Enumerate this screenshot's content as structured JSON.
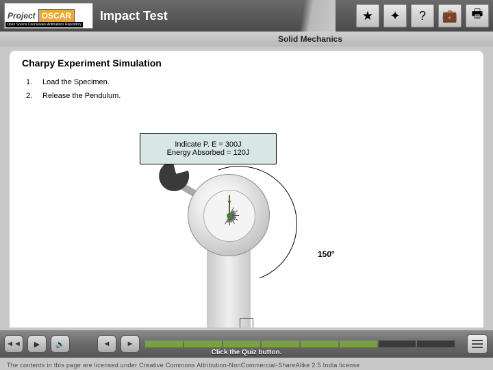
{
  "header": {
    "logo_project": "Project",
    "logo_oscar": "OSCAR",
    "logo_tagline": "Open Source Courseware Animations Repository",
    "title": "Impact Test",
    "buttons": [
      {
        "name": "favorite-icon",
        "glyph": "★"
      },
      {
        "name": "help-sparkle-icon",
        "glyph": "✦"
      },
      {
        "name": "help-icon",
        "glyph": "?"
      },
      {
        "name": "briefcase-icon",
        "glyph": "💼"
      },
      {
        "name": "print-icon",
        "glyph": "🖶"
      }
    ]
  },
  "subtitle": "Solid Mechanics",
  "content": {
    "section_title": "Charpy Experiment Simulation",
    "steps": [
      {
        "num": "1.",
        "text": "Load the Specimen."
      },
      {
        "num": "2.",
        "text": "Release the Pendulum."
      }
    ],
    "gauge": {
      "line1": "Indicate P. E = 300J",
      "line2": "Energy Absorbed = 120J"
    },
    "angle_label": "150",
    "angle_unit": "o",
    "dial_pointer": "▼",
    "dial": {
      "tick_count": 19,
      "tick_start_deg": -150,
      "tick_step_deg": 10
    },
    "progress": {
      "segments": 8,
      "done": 6
    },
    "colors": {
      "gauge_bg": "#d8e6e6",
      "done_seg": "#7aa040",
      "pendulum_head": "#3a3a3a"
    }
  },
  "player": {
    "prompt": "Click the Quiz button."
  },
  "license": "The contents in this page are licensed under Creative Commons Attribution-NonCommercial-ShareAlike 2.5 India license"
}
